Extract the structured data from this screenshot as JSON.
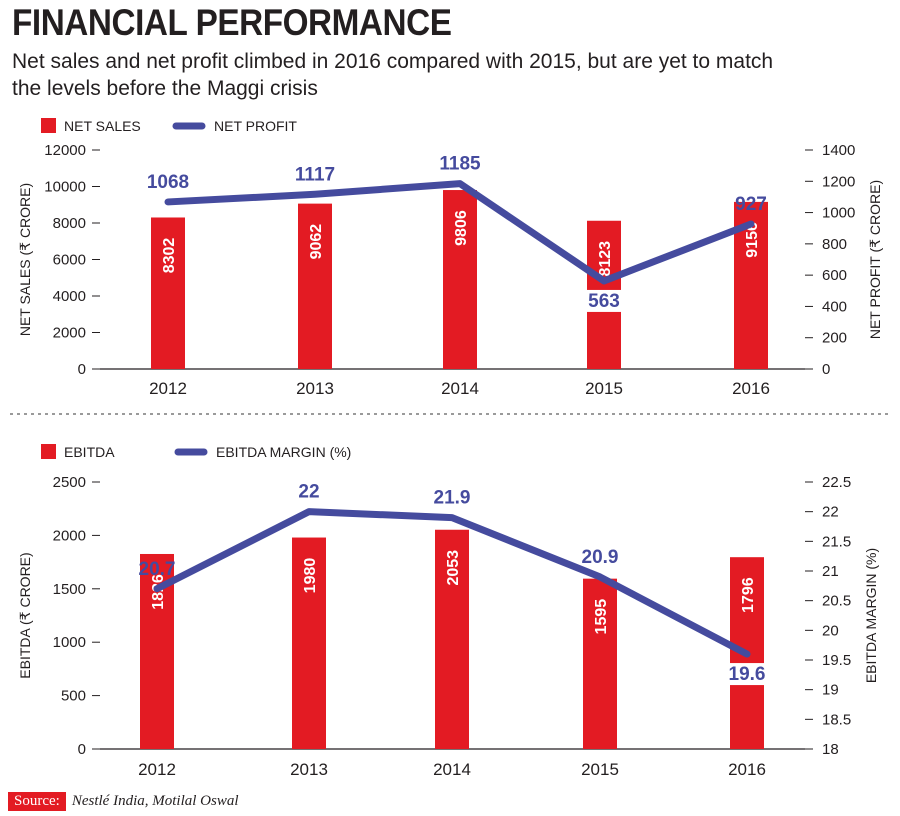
{
  "title": "FINANCIAL PERFORMANCE",
  "subtitle": "Net sales and net profit climbed in 2016 compared with 2015, but are yet to match the levels before the Maggi crisis",
  "colors": {
    "bar": "#e31b23",
    "line": "#454b9e",
    "axis": "#231f20",
    "divider": "#9a9a9a"
  },
  "chart_data": [
    {
      "type": "bar+line",
      "categories": [
        "2012",
        "2013",
        "2014",
        "2015",
        "2016"
      ],
      "legend": {
        "bar": "NET SALES",
        "line": "NET PROFIT"
      },
      "bar_series": {
        "name": "NET SALES",
        "values": [
          8302,
          9062,
          9806,
          8123,
          9156
        ]
      },
      "line_series": {
        "name": "NET PROFIT",
        "values": [
          1068,
          1117,
          1185,
          563,
          927
        ]
      },
      "ylabel_left": "NET SALES (₹ CRORE)",
      "ylabel_right": "NET PROFIT (₹ CRORE)",
      "ylim_left": [
        0,
        12000
      ],
      "ylim_right": [
        0,
        1400
      ],
      "left_ticks": [
        "0",
        "2000",
        "4000",
        "6000",
        "8000",
        "10000",
        "12000"
      ],
      "right_ticks": [
        "0",
        "200",
        "400",
        "600",
        "800",
        "1000",
        "1200",
        "1400"
      ]
    },
    {
      "type": "bar+line",
      "categories": [
        "2012",
        "2013",
        "2014",
        "2015",
        "2016"
      ],
      "legend": {
        "bar": "EBITDA",
        "line": "EBITDA MARGIN (%)"
      },
      "bar_series": {
        "name": "EBITDA",
        "values": [
          1826,
          1980,
          2053,
          1595,
          1796
        ]
      },
      "line_series": {
        "name": "EBITDA MARGIN (%)",
        "values": [
          20.7,
          22,
          21.9,
          20.9,
          19.6
        ]
      },
      "ylabel_left": "EBITDA (₹ CRORE)",
      "ylabel_right": "EBITDA MARGIN (%)",
      "ylim_left": [
        0,
        2500
      ],
      "ylim_right": [
        18,
        22.5
      ],
      "left_ticks": [
        "0",
        "500",
        "1000",
        "1500",
        "2000",
        "2500"
      ],
      "right_ticks": [
        "18",
        "18.5",
        "19",
        "19.5",
        "20",
        "20.5",
        "21",
        "21.5",
        "22",
        "22.5"
      ]
    }
  ],
  "source": {
    "label": "Source:",
    "text": "Nestlé India, Motilal Oswal"
  }
}
